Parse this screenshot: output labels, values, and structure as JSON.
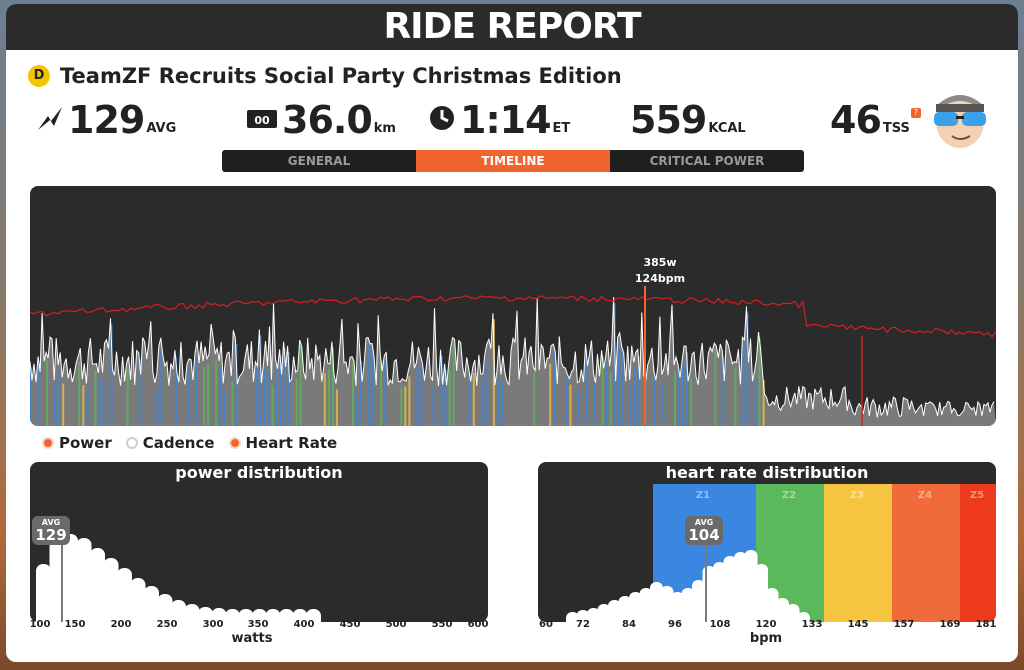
{
  "title": "RIDE REPORT",
  "route": {
    "category": "D",
    "name": "TeamZF Recruits Social Party Christmas Edition"
  },
  "stats": {
    "power": {
      "value": "129",
      "unit": "AVG",
      "icon": "power-bolt-icon"
    },
    "distance": {
      "value": "36.0",
      "unit": "km",
      "icon": "odometer-icon"
    },
    "time": {
      "value": "1:14",
      "unit": "ET",
      "icon": "clock-icon"
    },
    "calories": {
      "value": "559",
      "unit": "KCAL"
    },
    "tss": {
      "value": "46",
      "unit": "TSS",
      "help": "?"
    }
  },
  "tabs": [
    "GENERAL",
    "TIMELINE",
    "CRITICAL POWER"
  ],
  "active_tab": 1,
  "tooltip": {
    "power": "385w",
    "hr": "124bpm"
  },
  "legend": [
    {
      "label": "Power",
      "on": true
    },
    {
      "label": "Cadence",
      "on": false
    },
    {
      "label": "Heart Rate",
      "on": true
    }
  ],
  "power_distribution": {
    "title": "power distribution",
    "avg_label": "AVG",
    "avg_value": "129",
    "x_ticks": [
      "100",
      "150",
      "200",
      "250",
      "300",
      "350",
      "400",
      "450",
      "500",
      "550",
      "600"
    ],
    "x_label": "watts"
  },
  "hr_distribution": {
    "title": "heart rate distribution",
    "avg_label": "AVG",
    "avg_value": "104",
    "x_ticks": [
      "60",
      "72",
      "84",
      "96",
      "108",
      "120",
      "133",
      "145",
      "157",
      "169",
      "181"
    ],
    "x_label": "bpm",
    "zones": [
      "Z1",
      "Z2",
      "Z3",
      "Z4",
      "Z5"
    ]
  },
  "colors": {
    "accent": "#f0652f",
    "dark": "#2b2b2b",
    "hr_line": "#d42020",
    "z1": "#3a86e0",
    "z2": "#5cb85c",
    "z3": "#f5c542",
    "z4": "#f06a3a",
    "z5": "#ee3a1c"
  }
}
